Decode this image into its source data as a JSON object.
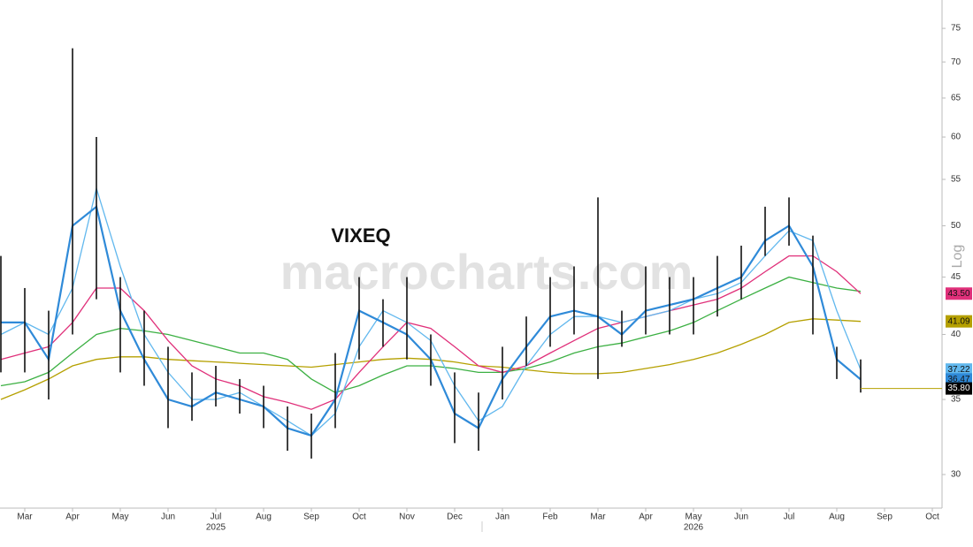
{
  "chart_data": {
    "type": "ohlc",
    "title": "VIXEQ",
    "watermark": "macrocharts.com",
    "y_axis_label": "Log",
    "log_scale": true,
    "categories": [
      null,
      "Mar",
      null,
      "Apr",
      null,
      "May",
      null,
      "Jun",
      null,
      "Jul",
      null,
      "Aug",
      null,
      "Sep",
      null,
      "Oct",
      null,
      "Nov",
      null,
      "Dec",
      null,
      "Jan",
      null,
      "Feb",
      null,
      "Mar",
      null,
      "Apr",
      null,
      "May",
      null,
      "Jun",
      null,
      "Jul",
      null,
      "Aug",
      null,
      "Sep",
      null,
      "Oct"
    ],
    "year_labels": [
      "2025",
      "2026"
    ],
    "high": [
      47,
      44,
      42,
      72,
      60,
      45,
      42,
      39,
      37,
      37.5,
      36.5,
      36,
      34.5,
      34,
      38.5,
      45,
      43,
      45,
      40,
      37,
      35.5,
      39,
      41.5,
      45,
      46,
      53,
      42,
      46,
      45,
      45,
      47,
      48,
      52,
      53,
      49,
      39,
      38,
      null,
      null,
      null
    ],
    "low": [
      37,
      37,
      35,
      40,
      43,
      37,
      36,
      33,
      33.5,
      34.5,
      34,
      33,
      31.5,
      31,
      33,
      38,
      39,
      38,
      36,
      32,
      31.5,
      35,
      37.5,
      39,
      40,
      36.5,
      39,
      40,
      40,
      40,
      41.5,
      43,
      47,
      48,
      40,
      36.5,
      35.5,
      null,
      null,
      null
    ],
    "bar_color": "#111111",
    "last": 35.8,
    "last_label": "35.80",
    "series": [
      {
        "color": "#b5a000",
        "last_label": "41.09",
        "values": [
          35,
          35.7,
          36.5,
          37.5,
          38,
          38.2,
          38.2,
          38,
          37.9,
          37.8,
          37.7,
          37.6,
          37.5,
          37.4,
          37.6,
          37.8,
          38,
          38.1,
          38,
          37.8,
          37.5,
          37.4,
          37.2,
          37,
          36.9,
          36.9,
          37,
          37.3,
          37.6,
          38,
          38.5,
          39.2,
          40,
          41,
          41.3,
          41.2,
          41.09,
          null,
          null,
          null
        ]
      },
      {
        "color": "#3cb043",
        "values": [
          36,
          36.3,
          37,
          38.5,
          40,
          40.5,
          40.3,
          40,
          39.5,
          39,
          38.5,
          38.5,
          38,
          36.5,
          35.5,
          36,
          36.8,
          37.5,
          37.5,
          37.3,
          37,
          37,
          37.3,
          37.8,
          38.5,
          39,
          39.3,
          39.8,
          40.3,
          41,
          42,
          43,
          44,
          45,
          44.5,
          44,
          43.7,
          null,
          null,
          null
        ]
      },
      {
        "color": "#e0307a",
        "last_label": "43.50",
        "values": [
          38,
          38.5,
          39,
          41,
          44,
          44,
          42,
          39.5,
          37.5,
          36.5,
          36,
          35.2,
          34.8,
          34.3,
          35,
          37,
          39,
          41,
          40.5,
          39,
          37.5,
          37,
          37.5,
          38.5,
          39.5,
          40.5,
          41,
          41.5,
          42,
          42.5,
          43,
          44,
          45.5,
          47,
          47,
          45.5,
          43.5,
          null,
          null,
          null
        ]
      },
      {
        "color": "#62b8ee",
        "last_label": "37.22",
        "values": [
          40,
          41,
          40,
          44,
          54,
          46,
          40,
          37,
          35,
          35,
          35.5,
          34.5,
          33.5,
          32.5,
          34,
          39,
          42,
          41,
          39.5,
          36,
          33.5,
          34.5,
          37.5,
          40,
          41.5,
          41.5,
          41,
          41.5,
          42,
          43,
          43.5,
          44.5,
          47,
          49.5,
          48.5,
          42,
          37.22,
          null,
          null,
          null
        ]
      },
      {
        "color": "#2f8ad8",
        "last_label": "36.47",
        "values": [
          41,
          41,
          38,
          50,
          52,
          42,
          38,
          35,
          34.5,
          35.5,
          35,
          34.5,
          33,
          32.5,
          35,
          42,
          41,
          40,
          38,
          34,
          33,
          36.5,
          39,
          41.5,
          42,
          41.5,
          40,
          42,
          42.5,
          43,
          44,
          45,
          48.5,
          50,
          46,
          38,
          36.47,
          null,
          null,
          null
        ]
      }
    ],
    "ylim": [
      28,
      79.5
    ],
    "yticks": [
      30,
      35,
      40,
      45,
      50,
      55,
      60,
      65,
      70,
      75
    ]
  }
}
